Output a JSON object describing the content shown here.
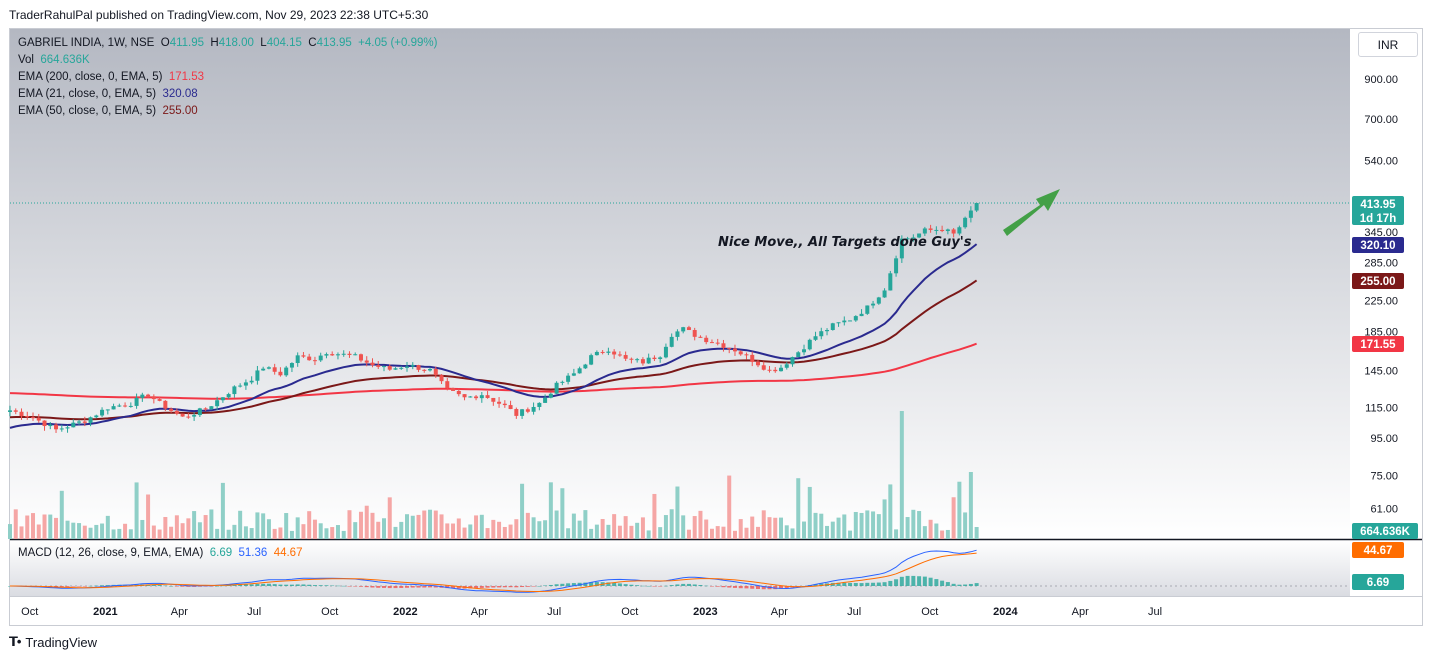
{
  "header": {
    "publisher": "TraderRahulPal published on TradingView.com, Nov 29, 2023 22:38 UTC+5:30"
  },
  "legend": {
    "symbol": "GABRIEL INDIA, 1W, NSE",
    "o_label": "O",
    "o": "411.95",
    "h_label": "H",
    "h": "418.00",
    "l_label": "L",
    "l": "404.15",
    "c_label": "C",
    "c": "413.95",
    "change": "+4.05 (+0.99%)",
    "vol_label": "Vol",
    "vol": "664.636K",
    "ema200_label": "EMA (200, close, 0, EMA, 5)",
    "ema200": "171.53",
    "ema21_label": "EMA (21, close, 0, EMA, 5)",
    "ema21": "320.08",
    "ema50_label": "EMA (50, close, 0, EMA, 5)",
    "ema50": "255.00"
  },
  "currency": "INR",
  "annotation": "Nice Move,, All Targets done Guy's",
  "macd_legend": {
    "label": "MACD (12, 26, close, 9, EMA, EMA)",
    "hist": "6.69",
    "macd": "51.36",
    "signal": "44.67"
  },
  "badges": {
    "price": "413.95",
    "countdown": "1d 17h",
    "ema21": "320.10",
    "ema50": "255.00",
    "ema200": "171.55",
    "volume": "664.636K",
    "signal": "44.67",
    "hist": "6.69"
  },
  "footer": {
    "brand": "TradingView"
  },
  "colors": {
    "up": "#26a69a",
    "down": "#ef5350",
    "ema200": "#f23645",
    "ema21": "#2a2a8f",
    "ema50": "#7b1818",
    "macd": "#2962ff",
    "signal": "#ff6d00",
    "arrow": "#43a047"
  },
  "chart_data": {
    "type": "candlestick",
    "symbol": "GABRIEL INDIA",
    "interval": "1W",
    "exchange": "NSE",
    "price_scale": "log",
    "price_axis_ticks": [
      "900.00",
      "700.00",
      "540.00",
      "413.95",
      "345.00",
      "285.00",
      "225.00",
      "185.00",
      "145.00",
      "115.00",
      "95.00",
      "75.00",
      "61.00"
    ],
    "x_ticks": [
      "Oct",
      "2021",
      "Apr",
      "Jul",
      "Oct",
      "2022",
      "Apr",
      "Jul",
      "Oct",
      "2023",
      "Apr",
      "Jul",
      "Oct",
      "2024",
      "Apr",
      "Jul"
    ],
    "close_series": [
      [
        "2020-09-07",
        113
      ],
      [
        "2020-10-05",
        108
      ],
      [
        "2020-11-02",
        100
      ],
      [
        "2020-12-07",
        106
      ],
      [
        "2021-01-04",
        115
      ],
      [
        "2021-02-01",
        118
      ],
      [
        "2021-02-22",
        125
      ],
      [
        "2021-03-08",
        118
      ],
      [
        "2021-04-05",
        108
      ],
      [
        "2021-05-03",
        114
      ],
      [
        "2021-06-07",
        130
      ],
      [
        "2021-06-28",
        138
      ],
      [
        "2021-07-12",
        148
      ],
      [
        "2021-08-02",
        142
      ],
      [
        "2021-08-23",
        158
      ],
      [
        "2021-09-13",
        156
      ],
      [
        "2021-09-27",
        163
      ],
      [
        "2021-10-18",
        160
      ],
      [
        "2021-11-01",
        158
      ],
      [
        "2021-11-22",
        150
      ],
      [
        "2021-12-13",
        146
      ],
      [
        "2022-01-03",
        150
      ],
      [
        "2022-01-31",
        145
      ],
      [
        "2022-02-21",
        128
      ],
      [
        "2022-03-14",
        122
      ],
      [
        "2022-04-04",
        125
      ],
      [
        "2022-05-02",
        116
      ],
      [
        "2022-05-16",
        110
      ],
      [
        "2022-06-13",
        118
      ],
      [
        "2022-07-04",
        132
      ],
      [
        "2022-07-25",
        142
      ],
      [
        "2022-08-15",
        158
      ],
      [
        "2022-09-05",
        166
      ],
      [
        "2022-09-26",
        155
      ],
      [
        "2022-10-17",
        153
      ],
      [
        "2022-11-07",
        160
      ],
      [
        "2022-11-21",
        182
      ],
      [
        "2022-12-05",
        188
      ],
      [
        "2022-12-26",
        178
      ],
      [
        "2023-01-16",
        172
      ],
      [
        "2023-02-06",
        165
      ],
      [
        "2023-02-27",
        155
      ],
      [
        "2023-03-20",
        145
      ],
      [
        "2023-04-03",
        148
      ],
      [
        "2023-04-24",
        163
      ],
      [
        "2023-05-15",
        180
      ],
      [
        "2023-06-05",
        192
      ],
      [
        "2023-06-26",
        200
      ],
      [
        "2023-07-17",
        215
      ],
      [
        "2023-08-07",
        242
      ],
      [
        "2023-08-28",
        330
      ],
      [
        "2023-09-11",
        335
      ],
      [
        "2023-09-25",
        348
      ],
      [
        "2023-10-16",
        352
      ],
      [
        "2023-10-30",
        340
      ],
      [
        "2023-11-13",
        372
      ],
      [
        "2023-11-27",
        413.95
      ]
    ],
    "ema_200": {
      "from": 126,
      "to": 171.53
    },
    "ema_21": {
      "from": 100,
      "to": 320.08
    },
    "ema_50": {
      "from": 108,
      "to": 255.0
    },
    "volume_last": "664.636K",
    "macd": {
      "fast": 12,
      "slow": 26,
      "signal": 9,
      "hist_last": 6.69,
      "macd_last": 51.36,
      "signal_last": 44.67
    },
    "annotation": "Nice Move,, All Targets done Guy's"
  }
}
